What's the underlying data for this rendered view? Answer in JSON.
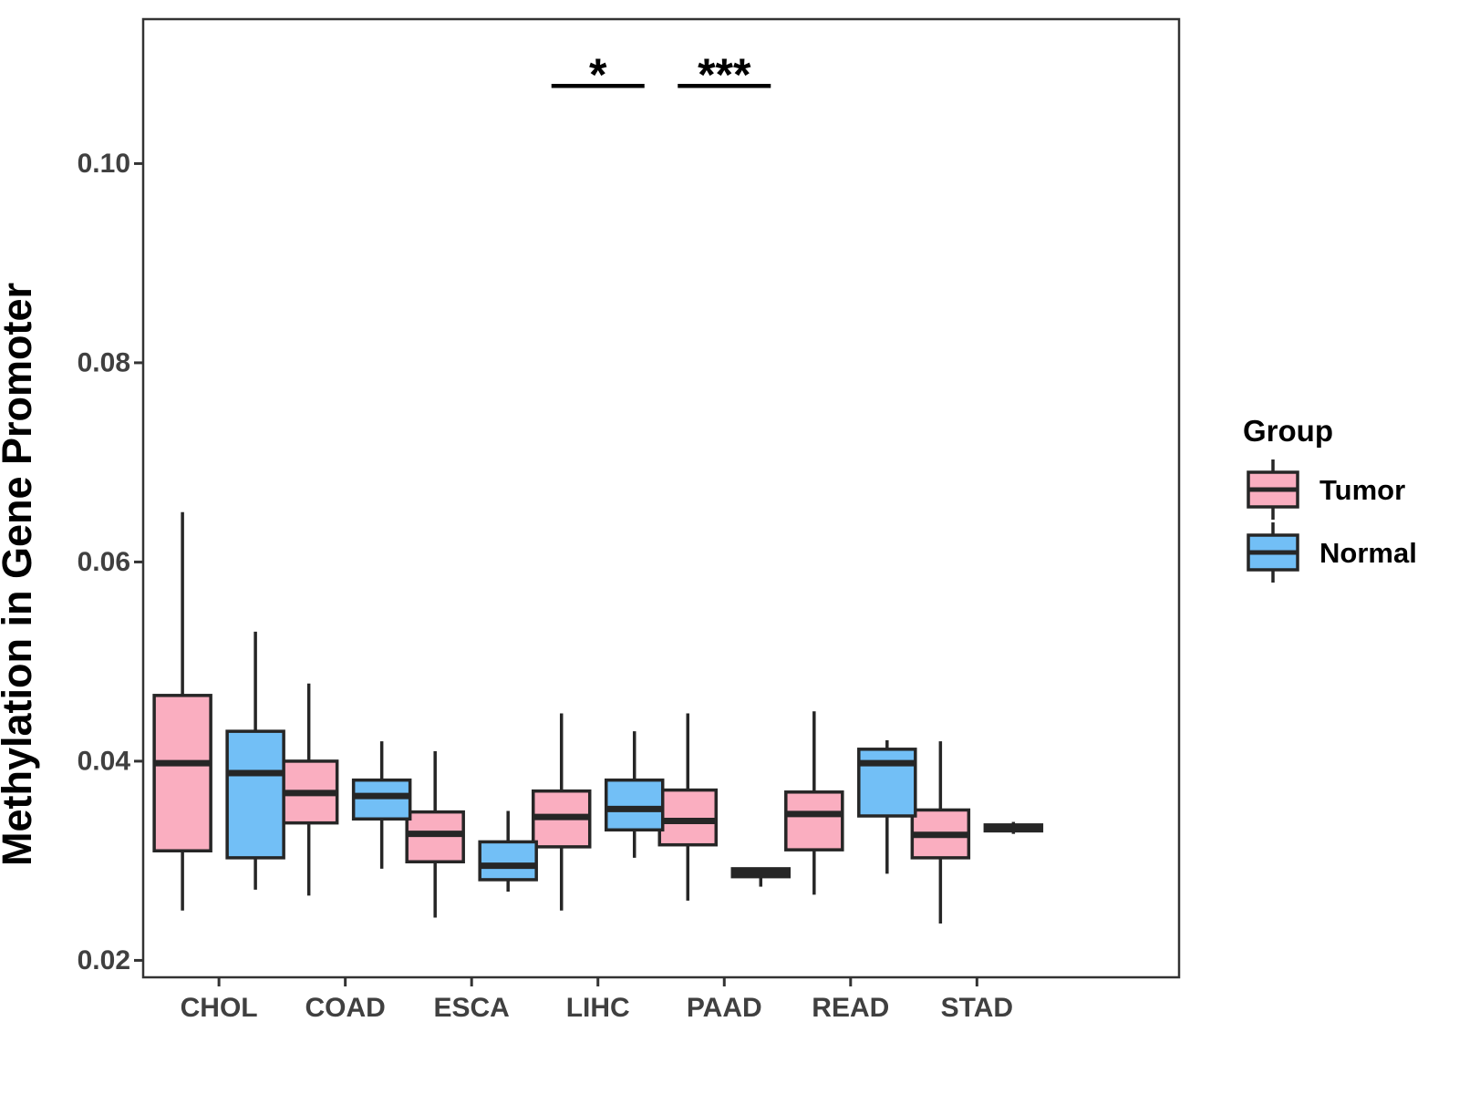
{
  "chart_data": {
    "type": "grouped_boxplot",
    "title": "",
    "xlabel": "",
    "ylabel": "Methylation in Gene Promoter",
    "categories": [
      "CHOL",
      "COAD",
      "ESCA",
      "LIHC",
      "PAAD",
      "READ",
      "STAD"
    ],
    "yticks": [
      {
        "value": 0.02,
        "label": "0.02"
      },
      {
        "value": 0.04,
        "label": "0.04"
      },
      {
        "value": 0.06,
        "label": "0.06"
      },
      {
        "value": 0.08,
        "label": "0.08"
      },
      {
        "value": 0.1,
        "label": "0.10"
      }
    ],
    "ylim": [
      0.0183,
      0.1145
    ],
    "grid": false,
    "legend": {
      "title": "Group",
      "position": "right",
      "entries": [
        {
          "label": "Tumor",
          "series": "Tumor"
        },
        {
          "label": "Normal",
          "series": "Normal"
        }
      ]
    },
    "series": [
      {
        "name": "Tumor",
        "color": "#FAAEC0",
        "boxes": [
          {
            "category": "CHOL",
            "whisker_low": 0.025,
            "q1": 0.031,
            "median": 0.0398,
            "q3": 0.0466,
            "whisker_high": 0.065
          },
          {
            "category": "COAD",
            "whisker_low": 0.0265,
            "q1": 0.0338,
            "median": 0.0368,
            "q3": 0.04,
            "whisker_high": 0.0478
          },
          {
            "category": "ESCA",
            "whisker_low": 0.0243,
            "q1": 0.0299,
            "median": 0.0327,
            "q3": 0.0349,
            "whisker_high": 0.041
          },
          {
            "category": "LIHC",
            "whisker_low": 0.025,
            "q1": 0.0314,
            "median": 0.0344,
            "q3": 0.037,
            "whisker_high": 0.0448
          },
          {
            "category": "PAAD",
            "whisker_low": 0.026,
            "q1": 0.0316,
            "median": 0.034,
            "q3": 0.0371,
            "whisker_high": 0.0448
          },
          {
            "category": "READ",
            "whisker_low": 0.0266,
            "q1": 0.0311,
            "median": 0.0347,
            "q3": 0.0369,
            "whisker_high": 0.045
          },
          {
            "category": "STAD",
            "whisker_low": 0.0237,
            "q1": 0.0303,
            "median": 0.0326,
            "q3": 0.0351,
            "whisker_high": 0.042
          }
        ]
      },
      {
        "name": "Normal",
        "color": "#72BFF6",
        "boxes": [
          {
            "category": "CHOL",
            "whisker_low": 0.0271,
            "q1": 0.0303,
            "median": 0.0388,
            "q3": 0.043,
            "whisker_high": 0.053
          },
          {
            "category": "COAD",
            "whisker_low": 0.0292,
            "q1": 0.0342,
            "median": 0.0365,
            "q3": 0.0381,
            "whisker_high": 0.042
          },
          {
            "category": "ESCA",
            "whisker_low": 0.0269,
            "q1": 0.0281,
            "median": 0.0295,
            "q3": 0.0319,
            "whisker_high": 0.035
          },
          {
            "category": "LIHC",
            "whisker_low": 0.0303,
            "q1": 0.0331,
            "median": 0.0352,
            "q3": 0.0381,
            "whisker_high": 0.043
          },
          {
            "category": "PAAD",
            "whisker_low": 0.0274,
            "q1": 0.0284,
            "median": 0.0288,
            "q3": 0.0292,
            "whisker_high": 0.0292
          },
          {
            "category": "READ",
            "whisker_low": 0.0287,
            "q1": 0.0345,
            "median": 0.0398,
            "q3": 0.0412,
            "whisker_high": 0.0421
          },
          {
            "category": "STAD",
            "whisker_low": 0.0327,
            "q1": 0.033,
            "median": 0.0333,
            "q3": 0.0336,
            "whisker_high": 0.0339
          }
        ]
      }
    ],
    "significance": [
      {
        "category": "LIHC",
        "label": "*",
        "bar_y": 0.1078
      },
      {
        "category": "PAAD",
        "label": "***",
        "bar_y": 0.1078
      }
    ],
    "colors": {
      "box_stroke": "#262626",
      "axis": "#333333",
      "tick_label": "#404040",
      "axis_title": "#000000",
      "background": "#FFFFFF"
    }
  }
}
